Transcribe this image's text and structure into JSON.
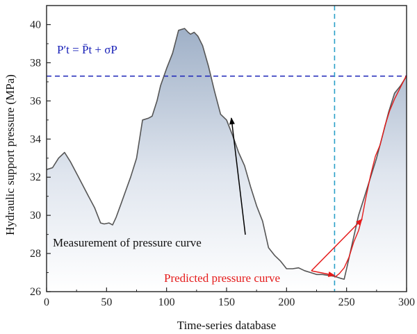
{
  "chart_data": {
    "type": "line",
    "xlabel": "Time-series database",
    "ylabel": "Hydraulic support pressure (MPa)",
    "xlim": [
      0,
      300
    ],
    "ylim": [
      26,
      41
    ],
    "xticks": [
      "0",
      "50",
      "100",
      "150",
      "200",
      "250",
      "300"
    ],
    "yticks": [
      "26",
      "28",
      "30",
      "32",
      "34",
      "36",
      "38",
      "40"
    ],
    "grid": false,
    "series": [
      {
        "name": "Measurement of pressure curve",
        "color": "#555555",
        "fill": "gradient slate-blue to white",
        "x": [
          0,
          5,
          10,
          15,
          20,
          25,
          30,
          35,
          40,
          45,
          48,
          52,
          55,
          58,
          62,
          66,
          70,
          75,
          80,
          85,
          88,
          92,
          95,
          100,
          105,
          110,
          115,
          118,
          120,
          123,
          126,
          130,
          135,
          140,
          145,
          150,
          155,
          160,
          165,
          170,
          175,
          180,
          185,
          190,
          195,
          200,
          205,
          210,
          215,
          220,
          225,
          230,
          235,
          240,
          245,
          248,
          250,
          255,
          260,
          265,
          270,
          275,
          280,
          285,
          290,
          295,
          300
        ],
        "y": [
          32.4,
          32.5,
          33.0,
          33.3,
          32.8,
          32.2,
          31.6,
          31.0,
          30.4,
          29.6,
          29.55,
          29.6,
          29.5,
          29.9,
          30.6,
          31.3,
          32.0,
          33.0,
          35.0,
          35.1,
          35.2,
          36.0,
          36.8,
          37.7,
          38.5,
          39.7,
          39.8,
          39.6,
          39.5,
          39.6,
          39.4,
          38.9,
          37.8,
          36.5,
          35.3,
          35.0,
          34.2,
          33.3,
          32.6,
          31.5,
          30.5,
          29.7,
          28.3,
          27.9,
          27.6,
          27.2,
          27.2,
          27.25,
          27.1,
          27.0,
          26.9,
          26.9,
          26.85,
          26.8,
          26.7,
          26.65,
          27.2,
          28.6,
          30.0,
          31.0,
          32.0,
          33.0,
          34.2,
          35.4,
          36.4,
          36.8,
          37.3
        ]
      },
      {
        "name": "Predicted pressure curve",
        "color": "#e51b1b",
        "x": [
          240,
          244,
          248,
          252,
          256,
          260,
          263,
          266,
          270,
          274,
          278,
          282,
          286,
          290,
          294,
          298,
          300
        ],
        "y": [
          26.75,
          26.95,
          27.25,
          27.8,
          28.6,
          29.2,
          29.9,
          30.9,
          32.1,
          33.1,
          33.7,
          34.7,
          35.5,
          36.1,
          36.6,
          37.1,
          37.35
        ]
      }
    ],
    "hlines": [
      {
        "y": 37.3,
        "color": "#1a22b8",
        "style": "dashed"
      }
    ],
    "vlines": [
      {
        "x": 240,
        "color": "#2aa0c8",
        "style": "dashed"
      }
    ],
    "annotations": {
      "formula": "P′t = P̄t + σP",
      "measurement_label": "Measurement of pressure curve",
      "measurement_arrow_target": {
        "x": 154,
        "y": 35.1
      },
      "predicted_label": "Predicted pressure curve",
      "predicted_arrow_targets": [
        {
          "x": 240,
          "y": 26.85
        },
        {
          "x": 263,
          "y": 29.8
        }
      ]
    }
  }
}
